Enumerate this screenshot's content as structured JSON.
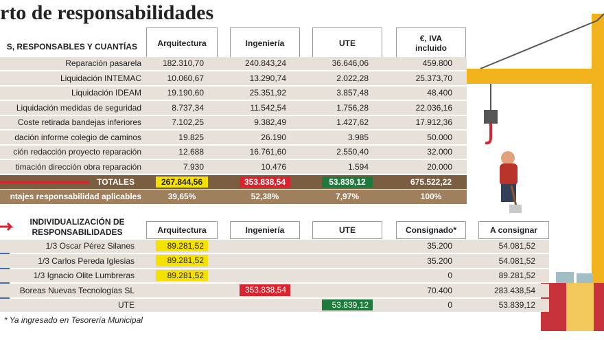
{
  "title": "rto de responsabilidades",
  "table1": {
    "header": [
      "S, RESPONSABLES Y CUANTÍAS",
      "Arquitectura",
      "Ingeniería",
      "UTE",
      "€, IVA incluido"
    ],
    "rows": [
      [
        "Reparación pasarela",
        "182.310,70",
        "240.843,24",
        "36.646,06",
        "459.800"
      ],
      [
        "Liquidación INTEMAC",
        "10.060,67",
        "13.290,74",
        "2.022,28",
        "25.373,70"
      ],
      [
        "Liquidación IDEAM",
        "19.190,60",
        "25.351,92",
        "3.857,48",
        "48.400"
      ],
      [
        "Liquidación medidas de seguridad",
        "8.737,34",
        "11.542,54",
        "1.756,28",
        "22.036,16"
      ],
      [
        "Coste retirada bandejas inferiores",
        "7.102,25",
        "9.382,49",
        "1.427,62",
        "17.912,36"
      ],
      [
        "dación informe colegio de caminos",
        "19.825",
        "26.190",
        "3.985",
        "50.000"
      ],
      [
        "ción redacción proyecto reparación",
        "12.688",
        "16.761,60",
        "2.550,40",
        "32.000"
      ],
      [
        "timación dirección obra reparación",
        "7.930",
        "10.476",
        "1.594",
        "20.000"
      ]
    ],
    "totals": [
      "TOTALES",
      "267.844,56",
      "353.838,54",
      "53.839,12",
      "675.522,22"
    ],
    "percentages": [
      "ntajes responsabilidad aplicables",
      "39,65%",
      "52,38%",
      "7,97%",
      "100%"
    ]
  },
  "table2": {
    "header": [
      "INDIVIDUALIZACIÓN DE RESPONSABILIDADES",
      "Arquitectura",
      "Ingeniería",
      "UTE",
      "Consignado*",
      "A consignar"
    ],
    "rows": [
      [
        "1/3 Oscar Pérez Silanes",
        "89.281,52",
        null,
        null,
        "35.200",
        "54.081,52"
      ],
      [
        "1/3 Carlos Pereda Iglesias",
        "89.281,52",
        null,
        null,
        "35.200",
        "54.081,52"
      ],
      [
        "1/3 Ignacio Olite Lumbreras",
        "89.281,52",
        null,
        null,
        "0",
        "89.281,52"
      ],
      [
        "Boreas Nuevas Tecnologías SL",
        null,
        "353.838,54",
        null,
        "70.400",
        "283.438,54"
      ],
      [
        "UTE",
        null,
        null,
        "53.839,12",
        "0",
        "53.839,12"
      ]
    ]
  },
  "footnote": "* Ya ingresado en Tesorería Municipal"
}
